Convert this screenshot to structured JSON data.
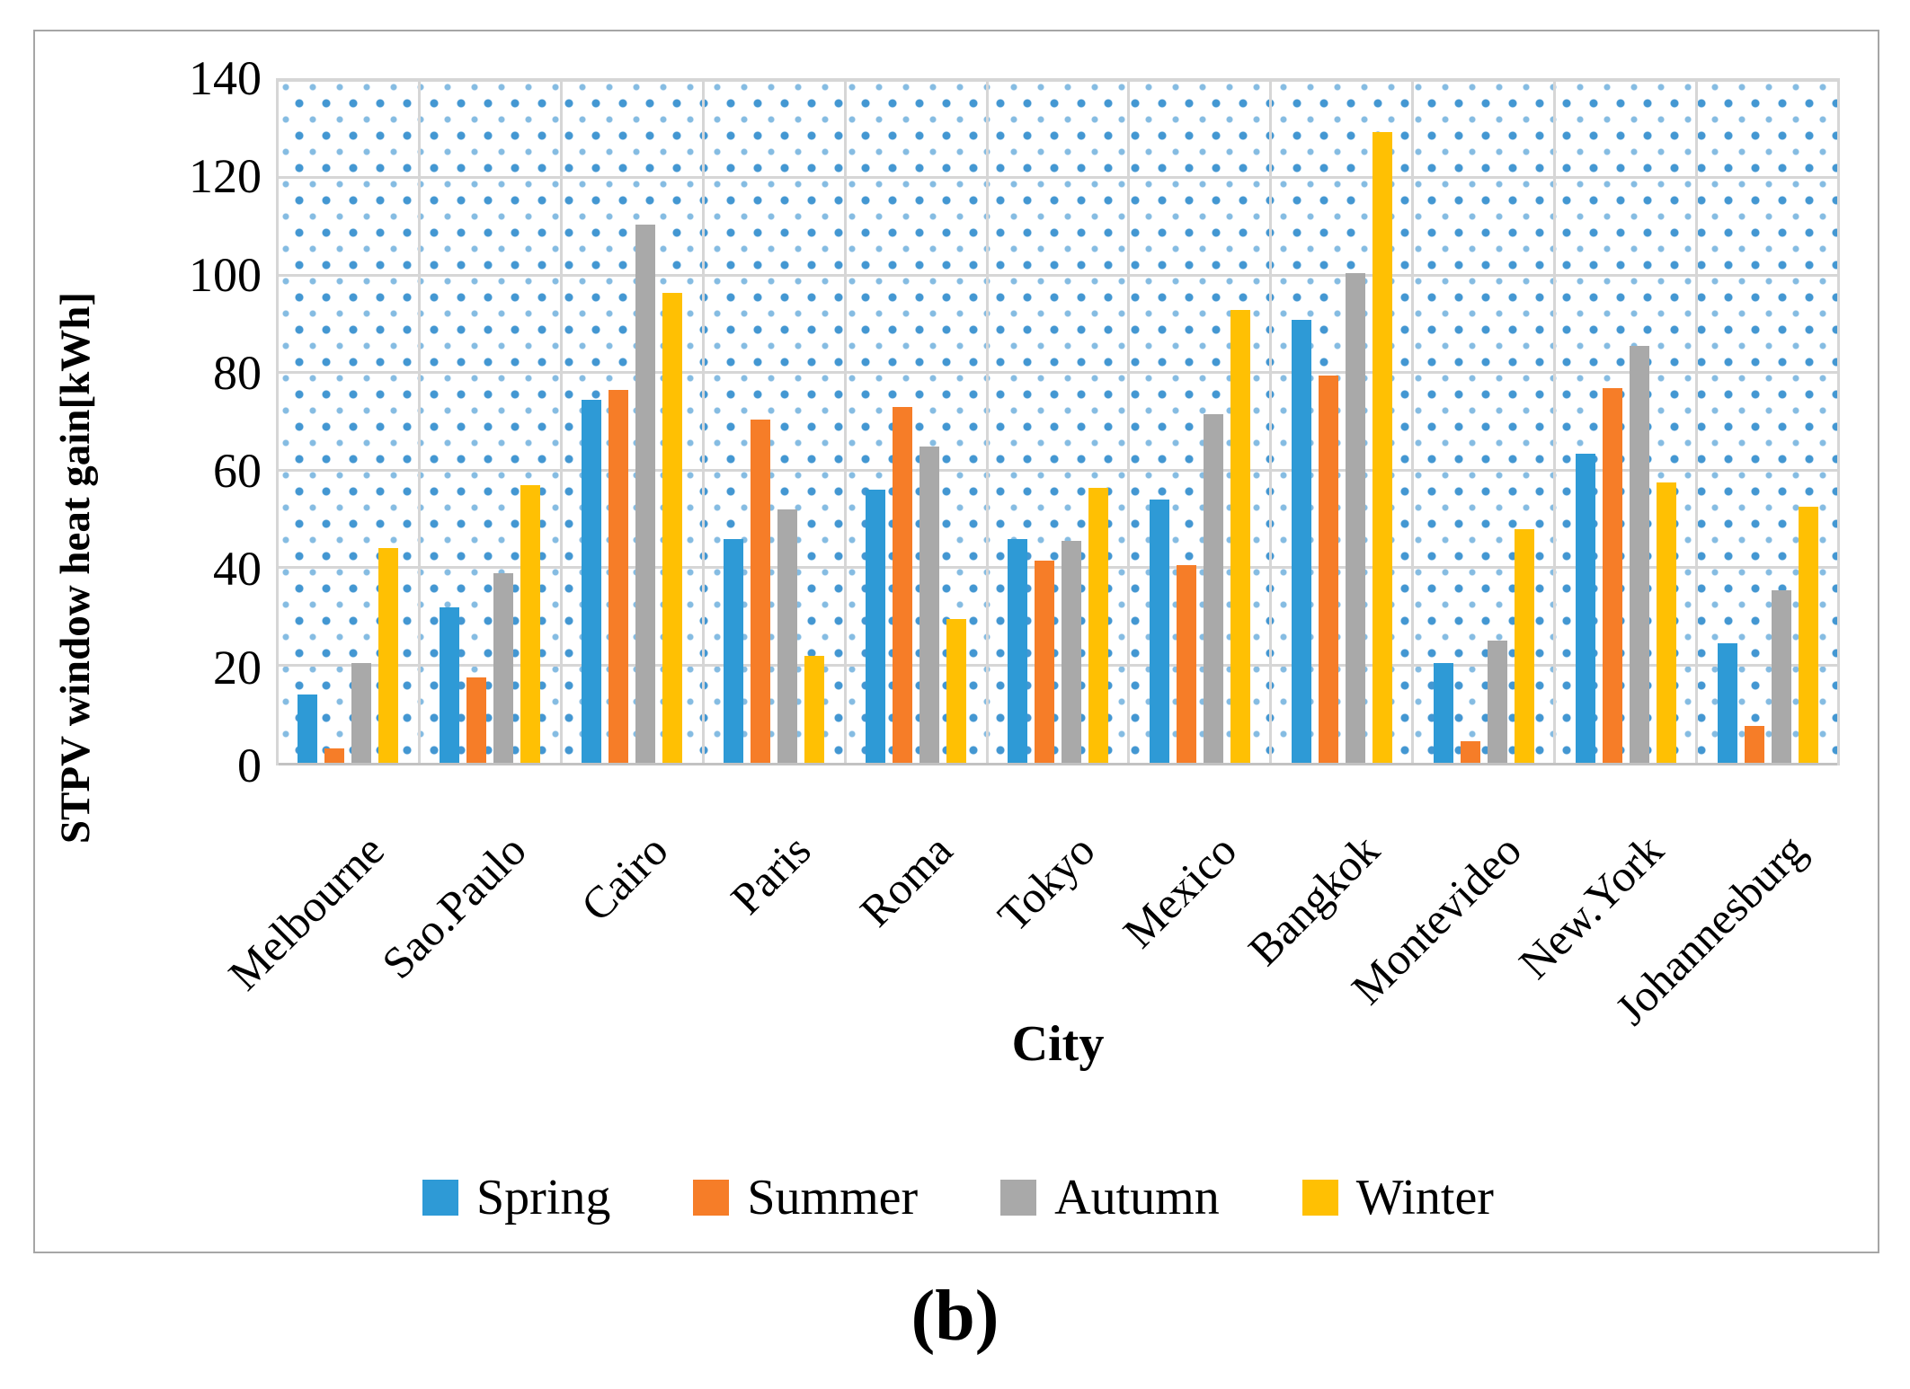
{
  "figure": {
    "caption": "(b)"
  },
  "colors": {
    "spring": "#2E9AD6",
    "summer": "#F67D28",
    "autumn": "#A9A9A9",
    "winter": "#FFC003",
    "gridline": "#D6D6D6",
    "plot_dot_dark": "#4397D2",
    "plot_dot_light": "#85BCE2",
    "outer_border": "#A6A6A6"
  },
  "chart_data": {
    "type": "bar",
    "title": "",
    "xlabel": "City",
    "ylabel": "STPV window heat gain[kWh]",
    "ylim": [
      0,
      140
    ],
    "yticks": [
      0,
      20,
      40,
      60,
      80,
      100,
      120,
      140
    ],
    "grid": true,
    "plot_background": "blue-dotted-pattern",
    "legend_position": "bottom",
    "categories": [
      "Melbourne",
      "Sao.Paulo",
      "Cairo",
      "Paris",
      "Roma",
      "Tokyo",
      "Mexico",
      "Bangkok",
      "Montevideo",
      "New.York",
      "Johannesburg"
    ],
    "series": [
      {
        "name": "Spring",
        "color": "#2E9AD6",
        "values": [
          14,
          32,
          74.5,
          46,
          56,
          46,
          54,
          91,
          20.5,
          63.5,
          24.5
        ]
      },
      {
        "name": "Summer",
        "color": "#F67D28",
        "values": [
          3,
          17.5,
          76.5,
          70.5,
          73,
          41.5,
          40.5,
          79.5,
          4.5,
          77,
          7.5
        ]
      },
      {
        "name": "Autumn",
        "color": "#A9A9A9",
        "values": [
          20.5,
          39,
          110.5,
          52,
          65,
          45.5,
          71.5,
          100.5,
          25,
          85.5,
          35.5
        ]
      },
      {
        "name": "Winter",
        "color": "#FFC003",
        "values": [
          44,
          57,
          96.5,
          22,
          29.5,
          56.5,
          93,
          129.5,
          48,
          57.5,
          52.5
        ]
      }
    ]
  }
}
